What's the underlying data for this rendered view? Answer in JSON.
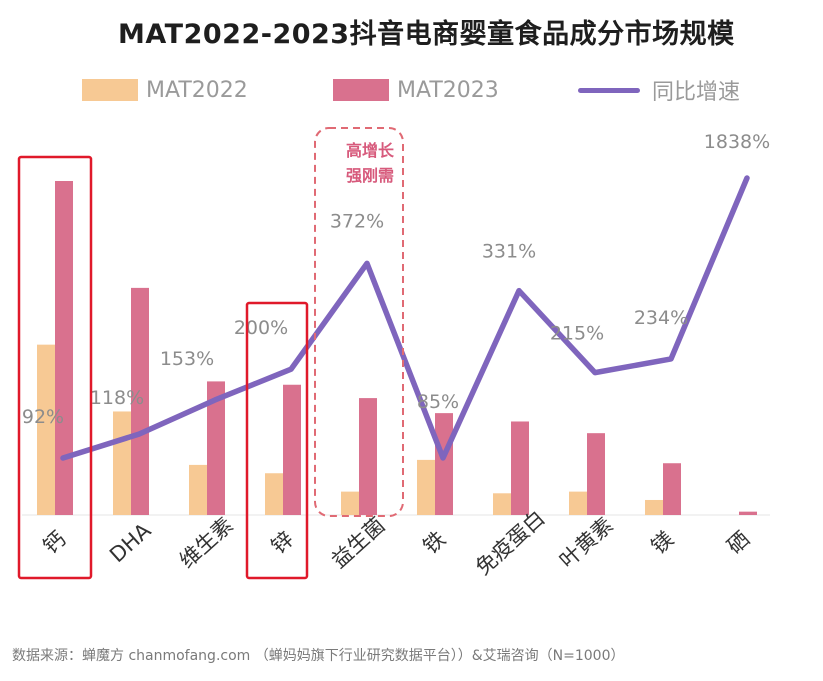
{
  "title": "MAT2022-2023抖音电商婴童食品成分市场规模",
  "legend": {
    "mat2022": "MAT2022",
    "mat2023": "MAT2023",
    "growth": "同比增速"
  },
  "annotation": {
    "line1": "高增长",
    "line2": "强刚需"
  },
  "source": "数据来源：蝉魔方 chanmofang.com （蝉妈妈旗下行业研究数据平台））&艾瑞咨询（N=1000）",
  "colors": {
    "mat2022": "#f7c994",
    "mat2023": "#d9718e",
    "growth": "#7f65bd",
    "highlight": "#e0192a",
    "annotation": "#e06a74"
  },
  "chart_data": {
    "type": "bar",
    "title": "MAT2022-2023抖音电商婴童食品成分市场规模",
    "categories": [
      "钙",
      "DHA",
      "维生素",
      "锌",
      "益生菌",
      "铁",
      "免疫蛋白",
      "叶黄素",
      "镁",
      "硒"
    ],
    "series": [
      {
        "name": "MAT2022",
        "values": [
          51,
          31,
          15,
          12.5,
          7,
          16.5,
          6.5,
          7,
          4.5,
          0
        ]
      },
      {
        "name": "MAT2023",
        "values": [
          100,
          68,
          40,
          39,
          35,
          30.5,
          28,
          24.5,
          15.5,
          1
        ]
      }
    ],
    "growth": {
      "name": "同比增速",
      "values": [
        92,
        118,
        153,
        200,
        372,
        85,
        331,
        215,
        234,
        1838
      ],
      "labels": [
        "92%",
        "118%",
        "153%",
        "200%",
        "372%",
        "85%",
        "331%",
        "215%",
        "234%",
        "1838%"
      ],
      "plot_levels": [
        18,
        25,
        35,
        44,
        75,
        18,
        67,
        43,
        47,
        100
      ]
    },
    "highlighted_categories": [
      "钙",
      "锌"
    ],
    "annotated_category": "益生菌",
    "xlabel": "",
    "ylabel": "",
    "ylim": [
      0,
      100
    ]
  }
}
